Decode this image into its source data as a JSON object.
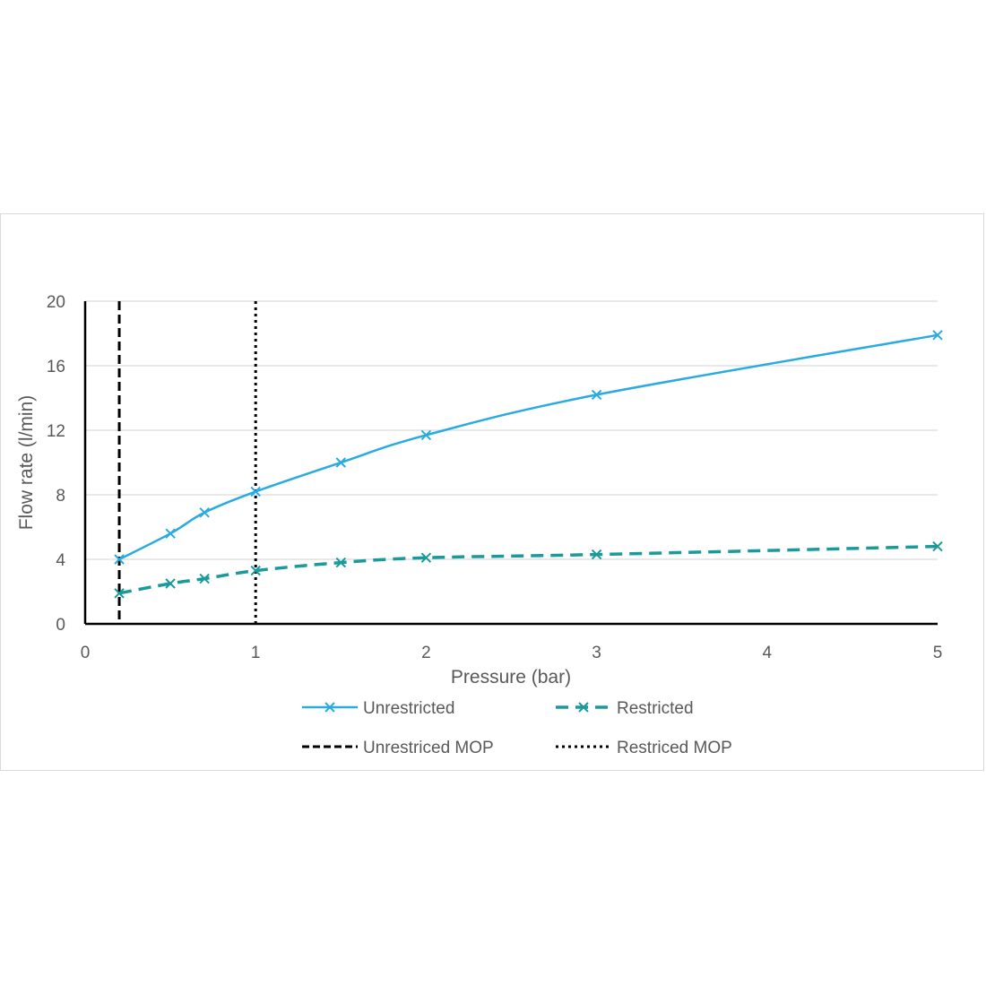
{
  "chart_data": {
    "type": "line",
    "xlabel": "Pressure (bar)",
    "ylabel": "Flow rate (l/min)",
    "xlim": [
      0,
      5
    ],
    "ylim": [
      0,
      20
    ],
    "x_ticks": [
      "0",
      "1",
      "2",
      "3",
      "4",
      "5"
    ],
    "y_ticks": [
      "0",
      "4",
      "8",
      "12",
      "16",
      "20"
    ],
    "grid": "horizontal",
    "legend_position": "bottom",
    "series": [
      {
        "name": "Unrestricted",
        "color": "#29ABE2",
        "style": "solid",
        "marker": "x",
        "x": [
          0.2,
          0.5,
          0.7,
          1,
          1.5,
          2,
          3,
          5
        ],
        "y": [
          4.0,
          5.6,
          6.9,
          8.2,
          10.0,
          11.7,
          14.2,
          17.9
        ]
      },
      {
        "name": "Restricted",
        "color": "#1A9A9A",
        "style": "dashed",
        "marker": "x",
        "x": [
          0.2,
          0.5,
          0.7,
          1,
          1.5,
          2,
          3,
          5
        ],
        "y": [
          1.9,
          2.5,
          2.8,
          3.3,
          3.8,
          4.1,
          4.3,
          4.8
        ]
      }
    ],
    "reference_lines": [
      {
        "name": "Unrestriced MOP",
        "x": 0.2,
        "style": "dashed",
        "color": "#000000"
      },
      {
        "name": "Restriced MOP",
        "x": 1,
        "style": "dotted",
        "color": "#000000"
      }
    ]
  }
}
